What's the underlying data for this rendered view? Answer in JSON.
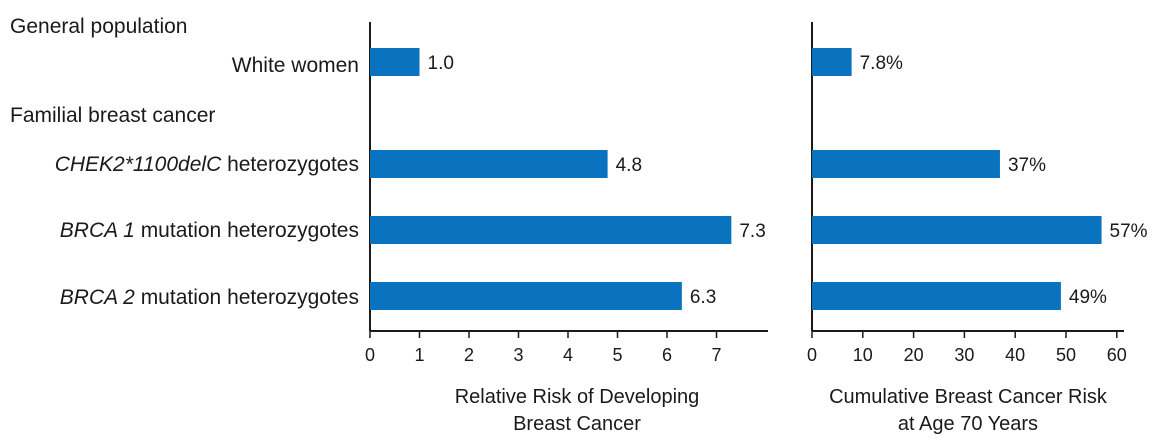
{
  "group_headers": [
    "General population",
    "Familial breast cancer"
  ],
  "rows": [
    {
      "italic": "",
      "text": "White women"
    },
    {
      "italic": "CHEK2*1100delC",
      "text": " heterozygotes"
    },
    {
      "italic": "BRCA 1",
      "text": " mutation heterozygotes"
    },
    {
      "italic": "BRCA 2",
      "text": " mutation heterozygotes"
    }
  ],
  "colors": {
    "bar": "#0a73bf",
    "axis": "#1a1a1a"
  },
  "chart_data": [
    {
      "type": "bar",
      "orientation": "horizontal",
      "categories": [
        "White women",
        "CHEK2*1100delC heterozygotes",
        "BRCA 1 mutation heterozygotes",
        "BRCA 2 mutation heterozygotes"
      ],
      "values": [
        1.0,
        4.8,
        7.3,
        6.3
      ],
      "value_labels": [
        "1.0",
        "4.8",
        "7.3",
        "6.3"
      ],
      "xlim": [
        0,
        8
      ],
      "xticks": [
        0,
        1,
        2,
        3,
        4,
        5,
        6,
        7
      ],
      "xlabel_lines": [
        "Relative Risk of Developing",
        "Breast Cancer"
      ],
      "grid": false
    },
    {
      "type": "bar",
      "orientation": "horizontal",
      "categories": [
        "White women",
        "CHEK2*1100delC heterozygotes",
        "BRCA 1 mutation heterozygotes",
        "BRCA 2 mutation heterozygotes"
      ],
      "values": [
        7.8,
        37,
        57,
        49
      ],
      "value_labels": [
        "7.8%",
        "37%",
        "57%",
        "49%"
      ],
      "xlim": [
        0,
        62
      ],
      "xticks": [
        0,
        10,
        20,
        30,
        40,
        50,
        60
      ],
      "xlabel_lines": [
        "Cumulative Breast Cancer Risk",
        "at Age 70 Years"
      ],
      "grid": false
    }
  ]
}
